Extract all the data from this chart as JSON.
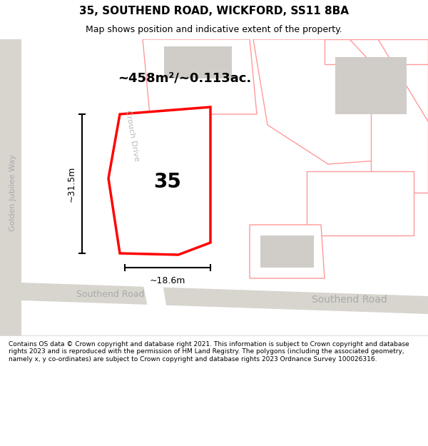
{
  "title": "35, SOUTHEND ROAD, WICKFORD, SS11 8BA",
  "subtitle": "Map shows position and indicative extent of the property.",
  "footer": "Contains OS data © Crown copyright and database right 2021. This information is subject to Crown copyright and database rights 2023 and is reproduced with the permission of HM Land Registry. The polygons (including the associated geometry, namely x, y co-ordinates) are subject to Crown copyright and database rights 2023 Ordnance Survey 100026316.",
  "area_label": "~458m²/~0.113ac.",
  "width_label": "~18.6m",
  "height_label": "~31.5m",
  "property_number": "35",
  "map_bg": "#f0eeeb",
  "road_color": "#d8d5cf",
  "property_fill": "#ffffff",
  "property_outline": "#ff0000",
  "pink_outline": "#ff9999",
  "building_fill": "#d0cdc8",
  "road_label_color": "#aaaaaa",
  "text_color": "#000000"
}
